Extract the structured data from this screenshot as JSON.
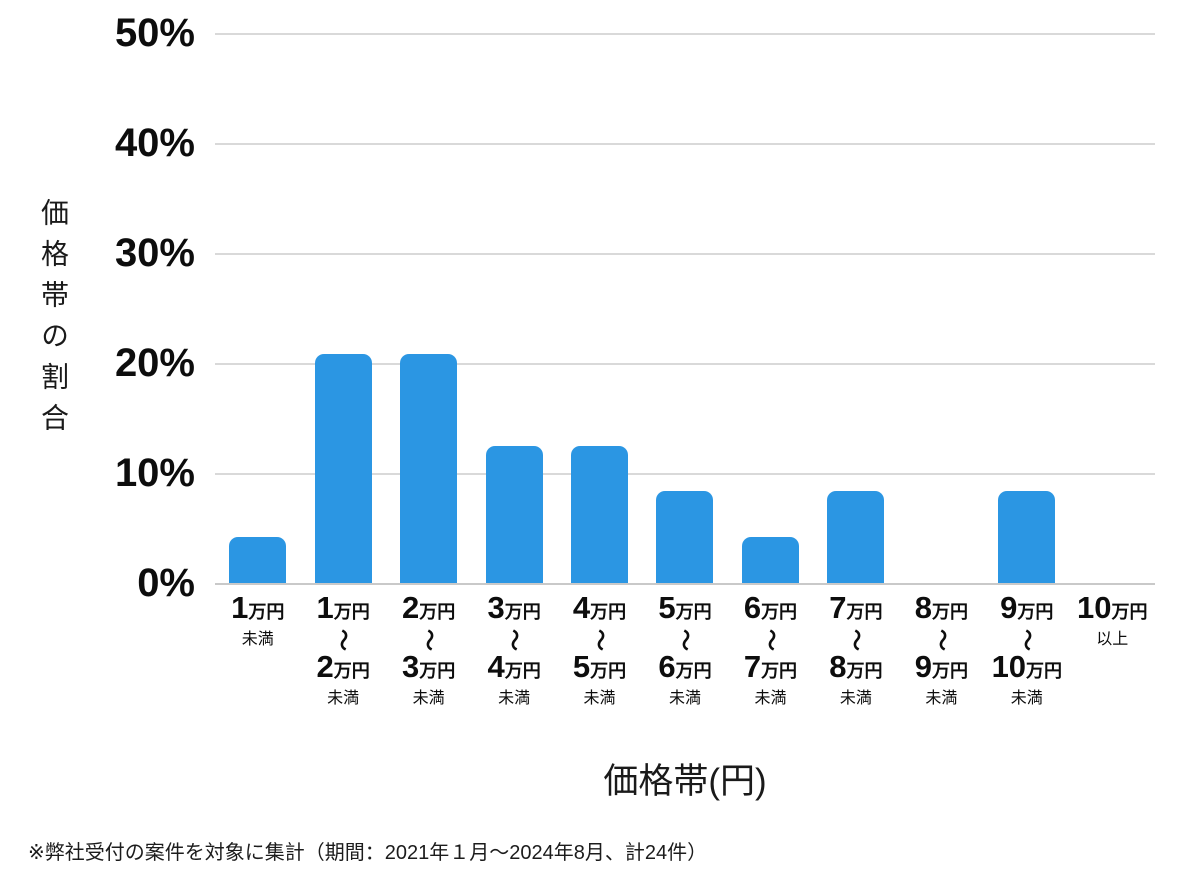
{
  "chart_data": {
    "type": "bar",
    "title": "",
    "xlabel": "価格帯(円)",
    "ylabel": "価格帯の割合",
    "ylim": [
      0,
      50
    ],
    "y_ticks": [
      "50%",
      "40%",
      "30%",
      "20%",
      "10%",
      "0%"
    ],
    "grid": true,
    "legend": "none",
    "bar_color": "#2b96e3",
    "categories": [
      {
        "lines": [
          "1万円",
          "未満"
        ]
      },
      {
        "lines": [
          "1万円",
          "～",
          "2万円",
          "未満"
        ]
      },
      {
        "lines": [
          "2万円",
          "～",
          "3万円",
          "未満"
        ]
      },
      {
        "lines": [
          "3万円",
          "～",
          "4万円",
          "未満"
        ]
      },
      {
        "lines": [
          "4万円",
          "～",
          "5万円",
          "未満"
        ]
      },
      {
        "lines": [
          "5万円",
          "～",
          "6万円",
          "未満"
        ]
      },
      {
        "lines": [
          "6万円",
          "～",
          "7万円",
          "未満"
        ]
      },
      {
        "lines": [
          "7万円",
          "～",
          "8万円",
          "未満"
        ]
      },
      {
        "lines": [
          "8万円",
          "～",
          "9万円",
          "未満"
        ]
      },
      {
        "lines": [
          "9万円",
          "～",
          "10万円",
          "未満"
        ]
      },
      {
        "lines": [
          "10万円",
          "以上"
        ]
      }
    ],
    "values": [
      4.17,
      20.83,
      20.83,
      12.5,
      12.5,
      8.33,
      4.17,
      8.33,
      0,
      8.33,
      0
    ]
  },
  "footnote": "※弊社受付の案件を対象に集計（期間：2021年１月～2024年8月、計24件）"
}
